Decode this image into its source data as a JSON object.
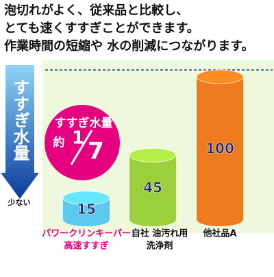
{
  "chart_data": {
    "type": "bar",
    "title_lines": [
      "泡切れがよく、従来品と比較し、",
      "とても速くすすぎことができます。",
      "作業時間の短縮や 水の削減につながります。"
    ],
    "categories": [
      [
        "パワークリンキーパー",
        "高速すすぎ"
      ],
      [
        "自社 油汚れ用",
        "洗浄剤"
      ],
      [
        "他社品A"
      ]
    ],
    "category_colors": [
      "#e4007f",
      "#111111",
      "#111111"
    ],
    "values": [
      15,
      45,
      100
    ],
    "colors": [
      "#5bc8f0",
      "#9ccf3c",
      "#f07a1e"
    ],
    "axis_label": "すすぎ水量",
    "axis_low_label": "少ない",
    "bubble": {
      "line1": "すすぎ水量",
      "prefix": "約",
      "numerator": "1",
      "denominator": "7"
    }
  }
}
